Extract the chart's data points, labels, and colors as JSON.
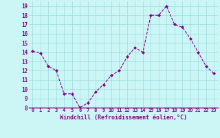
{
  "x": [
    0,
    1,
    2,
    3,
    4,
    5,
    6,
    7,
    8,
    9,
    10,
    11,
    12,
    13,
    14,
    15,
    16,
    17,
    18,
    19,
    20,
    21,
    22,
    23
  ],
  "y": [
    14.1,
    13.9,
    12.5,
    12.0,
    9.5,
    9.5,
    8.0,
    8.5,
    9.7,
    10.5,
    11.5,
    12.0,
    13.5,
    14.5,
    14.0,
    18.0,
    18.0,
    19.0,
    17.0,
    16.7,
    15.5,
    14.0,
    12.5,
    11.7
  ],
  "line_color": "#880088",
  "marker": "D",
  "marker_size": 2.0,
  "bg_color": "#ccf5f5",
  "grid_color": "#99dddd",
  "xlabel": "Windchill (Refroidissement éolien,°C)",
  "xlabel_color": "#880088",
  "tick_color": "#880088",
  "spine_color": "#880088",
  "ylim": [
    8,
    19.5
  ],
  "xlim": [
    -0.5,
    23.5
  ],
  "yticks": [
    8,
    9,
    10,
    11,
    12,
    13,
    14,
    15,
    16,
    17,
    18,
    19
  ],
  "xticks": [
    0,
    1,
    2,
    3,
    4,
    5,
    6,
    7,
    8,
    9,
    10,
    11,
    12,
    13,
    14,
    15,
    16,
    17,
    18,
    19,
    20,
    21,
    22,
    23
  ],
  "tick_fontsize": 5.0,
  "xlabel_fontsize": 6.0,
  "ytick_fontsize": 5.5
}
